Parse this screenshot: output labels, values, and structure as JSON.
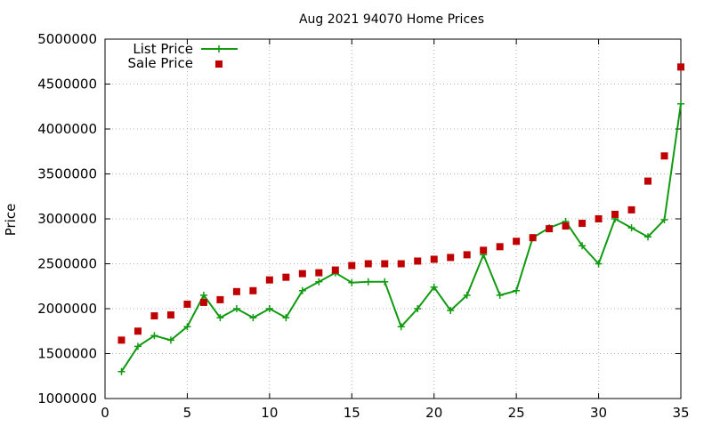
{
  "chart_data": {
    "type": "line",
    "title": "Aug 2021 94070 Home Prices",
    "xlabel": "",
    "ylabel": "Price",
    "xlim": [
      0,
      35
    ],
    "ylim": [
      1000000,
      5000000
    ],
    "x_ticks": [
      "0",
      "5",
      "10",
      "15",
      "20",
      "25",
      "30",
      "35"
    ],
    "y_ticks": [
      "1000000",
      "1500000",
      "2000000",
      "2500000",
      "3000000",
      "3500000",
      "4000000",
      "4500000",
      "5000000"
    ],
    "grid": true,
    "legend_position": "top-left",
    "series": [
      {
        "name": "List Price",
        "style": "line+plus",
        "color": "#109a10",
        "x": [
          1,
          2,
          3,
          4,
          5,
          6,
          7,
          8,
          9,
          10,
          11,
          12,
          13,
          14,
          15,
          16,
          17,
          18,
          19,
          20,
          21,
          22,
          23,
          24,
          25,
          26,
          27,
          28,
          29,
          30,
          31,
          32,
          33,
          34,
          35
        ],
        "values": [
          1300000,
          1580000,
          1700000,
          1650000,
          1800000,
          2150000,
          1900000,
          2000000,
          1900000,
          2000000,
          1900000,
          2200000,
          2300000,
          2400000,
          2290000,
          2300000,
          2300000,
          1800000,
          2000000,
          2240000,
          1980000,
          2150000,
          2600000,
          2150000,
          2200000,
          2790000,
          2900000,
          2970000,
          2700000,
          2500000,
          3000000,
          2900000,
          2800000,
          2990000,
          4280000
        ]
      },
      {
        "name": "Sale Price",
        "style": "square-markers",
        "color": "#c00000",
        "x": [
          1,
          2,
          3,
          4,
          5,
          6,
          7,
          8,
          9,
          10,
          11,
          12,
          13,
          14,
          15,
          16,
          17,
          18,
          19,
          20,
          21,
          22,
          23,
          24,
          25,
          26,
          27,
          28,
          29,
          30,
          31,
          32,
          33,
          34,
          35
        ],
        "values": [
          1650000,
          1750000,
          1920000,
          1930000,
          2050000,
          2070000,
          2100000,
          2190000,
          2200000,
          2320000,
          2350000,
          2390000,
          2400000,
          2430000,
          2480000,
          2500000,
          2500000,
          2500000,
          2530000,
          2550000,
          2570000,
          2600000,
          2650000,
          2690000,
          2750000,
          2790000,
          2890000,
          2920000,
          2950000,
          3000000,
          3050000,
          3100000,
          3420000,
          3700000,
          4690000
        ]
      }
    ]
  }
}
